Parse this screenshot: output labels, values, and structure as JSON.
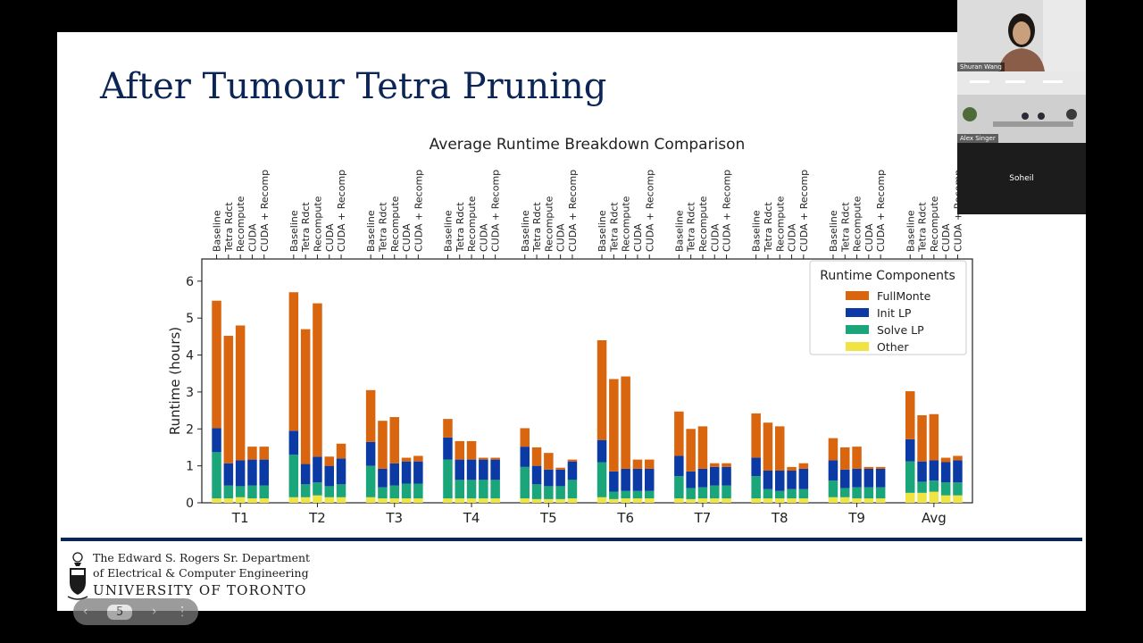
{
  "slide": {
    "title": "After Tumour Tetra Pruning",
    "department_line1": "The Edward S. Rogers Sr. Department",
    "department_line2": "of Electrical & Computer Engineering",
    "university": "UNIVERSITY OF TORONTO",
    "page_number": "5",
    "rule_color": "#0b2556",
    "title_color": "#0b2556"
  },
  "pager": {
    "prev_icon": "‹",
    "next_icon": "›",
    "more_icon": "⋮"
  },
  "participants": [
    {
      "name": "Shuran Wang"
    },
    {
      "name": "Alex Singer"
    },
    {
      "name": "Soheil"
    }
  ],
  "chart_data": {
    "type": "bar",
    "stacked": true,
    "title": "Average Runtime Breakdown Comparison",
    "ylabel": "Runtime (hours)",
    "xlabel": "",
    "ylim": [
      0,
      6.6
    ],
    "yticks": [
      0,
      1,
      2,
      3,
      4,
      5,
      6
    ],
    "groups": [
      "T1",
      "T2",
      "T3",
      "T4",
      "T5",
      "T6",
      "T7",
      "T8",
      "T9",
      "Avg"
    ],
    "variants": [
      "Baseline",
      "Tetra Rdct",
      "Recompute",
      "CUDA",
      "CUDA + Recomp"
    ],
    "legend_title": "Runtime Components",
    "legend_position": "top-right",
    "series": [
      {
        "name": "FullMonte",
        "color": "#d9650e",
        "values": [
          [
            3.45,
            3.45,
            3.65,
            0.35,
            0.35
          ],
          [
            3.75,
            3.65,
            4.15,
            0.25,
            0.4
          ],
          [
            1.4,
            1.3,
            1.25,
            0.1,
            0.15
          ],
          [
            0.5,
            0.5,
            0.5,
            0.05,
            0.05
          ],
          [
            0.5,
            0.5,
            0.45,
            0.05,
            0.05
          ],
          [
            2.7,
            2.5,
            2.5,
            0.25,
            0.25
          ],
          [
            1.2,
            1.15,
            1.15,
            0.1,
            0.1
          ],
          [
            1.2,
            1.3,
            1.2,
            0.1,
            0.15
          ],
          [
            0.6,
            0.6,
            0.6,
            0.05,
            0.05
          ],
          [
            1.3,
            1.25,
            1.25,
            0.12,
            0.12
          ]
        ]
      },
      {
        "name": "Init LP",
        "color": "#0b3aa4",
        "values": [
          [
            0.65,
            0.6,
            0.7,
            0.7,
            0.7
          ],
          [
            0.65,
            0.55,
            0.7,
            0.55,
            0.7
          ],
          [
            0.65,
            0.5,
            0.6,
            0.6,
            0.6
          ],
          [
            0.6,
            0.55,
            0.55,
            0.55,
            0.55
          ],
          [
            0.55,
            0.5,
            0.45,
            0.45,
            0.5
          ],
          [
            0.6,
            0.55,
            0.6,
            0.6,
            0.6
          ],
          [
            0.55,
            0.45,
            0.5,
            0.5,
            0.5
          ],
          [
            0.5,
            0.5,
            0.55,
            0.5,
            0.55
          ],
          [
            0.55,
            0.5,
            0.5,
            0.5,
            0.5
          ],
          [
            0.6,
            0.55,
            0.55,
            0.55,
            0.6
          ]
        ]
      },
      {
        "name": "Solve LP",
        "color": "#1aa57a",
        "values": [
          [
            1.25,
            0.35,
            0.3,
            0.35,
            0.35
          ],
          [
            1.15,
            0.35,
            0.35,
            0.3,
            0.35
          ],
          [
            0.85,
            0.3,
            0.35,
            0.4,
            0.4
          ],
          [
            1.05,
            0.5,
            0.5,
            0.5,
            0.5
          ],
          [
            0.85,
            0.4,
            0.35,
            0.35,
            0.5
          ],
          [
            0.95,
            0.2,
            0.2,
            0.2,
            0.2
          ],
          [
            0.6,
            0.3,
            0.3,
            0.35,
            0.35
          ],
          [
            0.6,
            0.25,
            0.2,
            0.25,
            0.25
          ],
          [
            0.45,
            0.25,
            0.3,
            0.3,
            0.3
          ],
          [
            0.85,
            0.3,
            0.3,
            0.35,
            0.35
          ]
        ]
      },
      {
        "name": "Other",
        "color": "#f0e442",
        "values": [
          [
            0.12,
            0.12,
            0.15,
            0.12,
            0.12
          ],
          [
            0.15,
            0.15,
            0.2,
            0.15,
            0.15
          ],
          [
            0.15,
            0.12,
            0.12,
            0.12,
            0.12
          ],
          [
            0.12,
            0.12,
            0.12,
            0.12,
            0.12
          ],
          [
            0.12,
            0.1,
            0.1,
            0.1,
            0.12
          ],
          [
            0.15,
            0.1,
            0.12,
            0.12,
            0.12
          ],
          [
            0.12,
            0.1,
            0.12,
            0.12,
            0.12
          ],
          [
            0.12,
            0.12,
            0.12,
            0.12,
            0.12
          ],
          [
            0.15,
            0.15,
            0.12,
            0.12,
            0.12
          ],
          [
            0.27,
            0.27,
            0.3,
            0.2,
            0.2
          ]
        ]
      }
    ]
  }
}
